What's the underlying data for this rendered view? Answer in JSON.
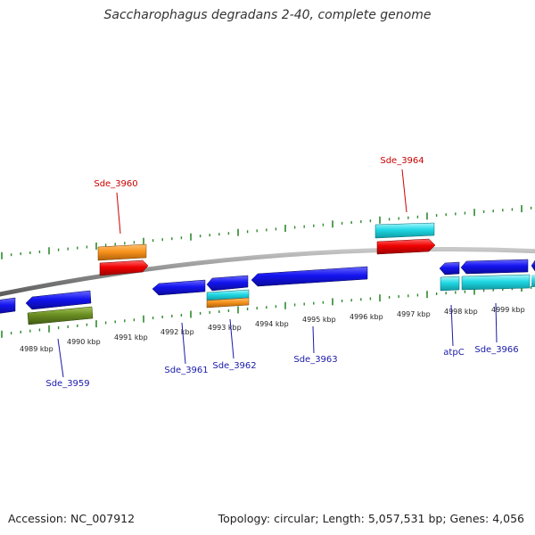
{
  "title": "Saccharophagus degradans 2-40, complete genome",
  "footer": {
    "accession": "Accession: NC_007912",
    "topology": "Topology: circular; Length: 5,057,531 bp; Genes: 4,056"
  },
  "colors": {
    "backbone": "#8a8a8a",
    "tick": "#2d8a2d",
    "cds_forward": "#e00000",
    "cds_reverse": "#1010ee",
    "gene_cyan": "#1fd8e4",
    "gene_orange": "#f7941d",
    "gene_olive": "#6b8e23",
    "label_red": "#cc0000",
    "label_blue": "#1a1aaa"
  },
  "axis_labels": [
    "4989 kbp",
    "4990 kbp",
    "4991 kbp",
    "4992 kbp",
    "4993 kbp",
    "4994 kbp",
    "4995 kbp",
    "4996 kbp",
    "4997 kbp",
    "4998 kbp",
    "4999 kbp"
  ],
  "gene_labels": {
    "sde3960": "Sde_3960",
    "sde3964": "Sde_3964",
    "sde3959": "Sde_3959",
    "sde3961": "Sde_3961",
    "sde3962": "Sde_3962",
    "sde3963": "Sde_3963",
    "atpC": "atpC",
    "sde3966": "Sde_3966"
  }
}
